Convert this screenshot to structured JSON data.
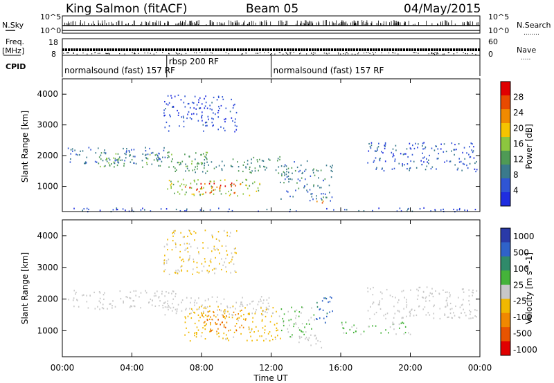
{
  "header": {
    "station": "King Salmon (fitACF)",
    "beam": "Beam 05",
    "date": "04/May/2015"
  },
  "top_panel_labels": {
    "nsky": "N.Sky",
    "freq": "Freq.",
    "freq_unit": "[MHz]",
    "cpid": "CPID",
    "nsearch": "N.Search",
    "nsearch_dots": "........",
    "nave": "Nave",
    "nave_dots": ".....",
    "nsky_ticks": [
      "10^5",
      "10^0"
    ],
    "nsearch_ticks": [
      "10^5",
      "10^0"
    ],
    "freq_ticks": [
      "18",
      "8"
    ],
    "nave_ticks": [
      "60",
      "0"
    ]
  },
  "cpid_segments": [
    {
      "label": "normalsound (fast) 157 RF",
      "start_hour": 0.0,
      "end_hour": 6.0
    },
    {
      "label": "rbsp 200 RF",
      "start_hour": 6.0,
      "end_hour": 12.0
    },
    {
      "label": "normalsound (fast) 157 RF",
      "start_hour": 12.0,
      "end_hour": 24.0
    }
  ],
  "colors": {
    "power_scale": [
      "#1f2de0",
      "#2f55d4",
      "#3a7a8c",
      "#4f9a55",
      "#8cc63f",
      "#f5c400",
      "#f08a00",
      "#e84a00",
      "#e00000"
    ],
    "velocity_scale": [
      "#2a3aa8",
      "#2f62c9",
      "#2f8a6a",
      "#45b33a",
      "#c8c8c8",
      "#f0b800",
      "#f08800",
      "#e85400",
      "#e00000"
    ]
  },
  "chart_data": [
    {
      "type": "heatmap",
      "panel": "power",
      "ylabel": "Slant Range [km]",
      "xlabel": "Time UT",
      "x_ticks": [
        "00:00",
        "04:00",
        "08:00",
        "12:00",
        "16:00",
        "20:00",
        "00:00"
      ],
      "x_range_hours": [
        0,
        24
      ],
      "y_ticks": [
        1000,
        2000,
        3000,
        4000
      ],
      "y_range_km": [
        180,
        4500
      ],
      "colorbar": {
        "label": "Power [dB]",
        "ticks": [
          "4",
          "8",
          "12",
          "16",
          "20",
          "24",
          "28"
        ],
        "range": [
          0,
          30
        ]
      },
      "regions": [
        {
          "x_start": 0.3,
          "x_end": 6.0,
          "r_low": 1750,
          "r_high": 2300,
          "value": 7
        },
        {
          "x_start": 2.0,
          "x_end": 8.5,
          "r_low": 1650,
          "r_high": 2150,
          "value": 12
        },
        {
          "x_start": 6.0,
          "x_end": 12.5,
          "r_low": 1450,
          "r_high": 2000,
          "value": 10
        },
        {
          "x_start": 6.0,
          "x_end": 11.5,
          "r_low": 700,
          "r_high": 1250,
          "value": 15
        },
        {
          "x_start": 7.0,
          "x_end": 10.5,
          "r_low": 800,
          "r_high": 1150,
          "value": 25
        },
        {
          "x_start": 12.5,
          "x_end": 15.5,
          "r_low": 550,
          "r_high": 1850,
          "value": 8
        },
        {
          "x_start": 14.5,
          "x_end": 15.0,
          "r_low": 450,
          "r_high": 700,
          "value": 24
        },
        {
          "x_start": 17.5,
          "x_end": 23.8,
          "r_low": 1500,
          "r_high": 2450,
          "value": 5
        },
        {
          "x_start": 5.8,
          "x_end": 10.0,
          "r_low": 2800,
          "r_high": 4000,
          "value": 4
        },
        {
          "x_start": 0.0,
          "x_end": 24.0,
          "r_low": 200,
          "r_high": 320,
          "value": 5
        }
      ]
    },
    {
      "type": "heatmap",
      "panel": "velocity",
      "ylabel": "Slant Range [km]",
      "xlabel": "Time UT",
      "x_ticks": [
        "00:00",
        "04:00",
        "08:00",
        "12:00",
        "16:00",
        "20:00",
        "00:00"
      ],
      "x_range_hours": [
        0,
        24
      ],
      "y_ticks": [
        1000,
        2000,
        3000,
        4000
      ],
      "y_range_km": [
        180,
        4500
      ],
      "colorbar": {
        "label": "Velocity [m s^-1]",
        "ticks": [
          "1000",
          "500",
          "100",
          "25",
          "-25",
          "-100",
          "-500",
          "-1000"
        ],
        "range": [
          -1200,
          1200
        ]
      },
      "regions": [
        {
          "x_start": 0.3,
          "x_end": 6.5,
          "r_low": 1700,
          "r_high": 2300,
          "value": 0
        },
        {
          "x_start": 5.5,
          "x_end": 12.0,
          "r_low": 1500,
          "r_high": 2100,
          "value": -20
        },
        {
          "x_start": 7.0,
          "x_end": 12.5,
          "r_low": 700,
          "r_high": 1800,
          "value": -200
        },
        {
          "x_start": 8.0,
          "x_end": 10.5,
          "r_low": 1000,
          "r_high": 1700,
          "value": -600
        },
        {
          "x_start": 12.5,
          "x_end": 14.5,
          "r_low": 800,
          "r_high": 1800,
          "value": 150
        },
        {
          "x_start": 14.5,
          "x_end": 15.5,
          "r_low": 1200,
          "r_high": 2100,
          "value": 700
        },
        {
          "x_start": 13.5,
          "x_end": 15.0,
          "r_low": 450,
          "r_high": 900,
          "value": 0
        },
        {
          "x_start": 17.5,
          "x_end": 23.8,
          "r_low": 1400,
          "r_high": 2400,
          "value": 0
        },
        {
          "x_start": 16.0,
          "x_end": 20.0,
          "r_low": 900,
          "r_high": 1300,
          "value": 150
        },
        {
          "x_start": 5.8,
          "x_end": 10.0,
          "r_low": 2800,
          "r_high": 4200,
          "value": -150
        }
      ]
    }
  ]
}
